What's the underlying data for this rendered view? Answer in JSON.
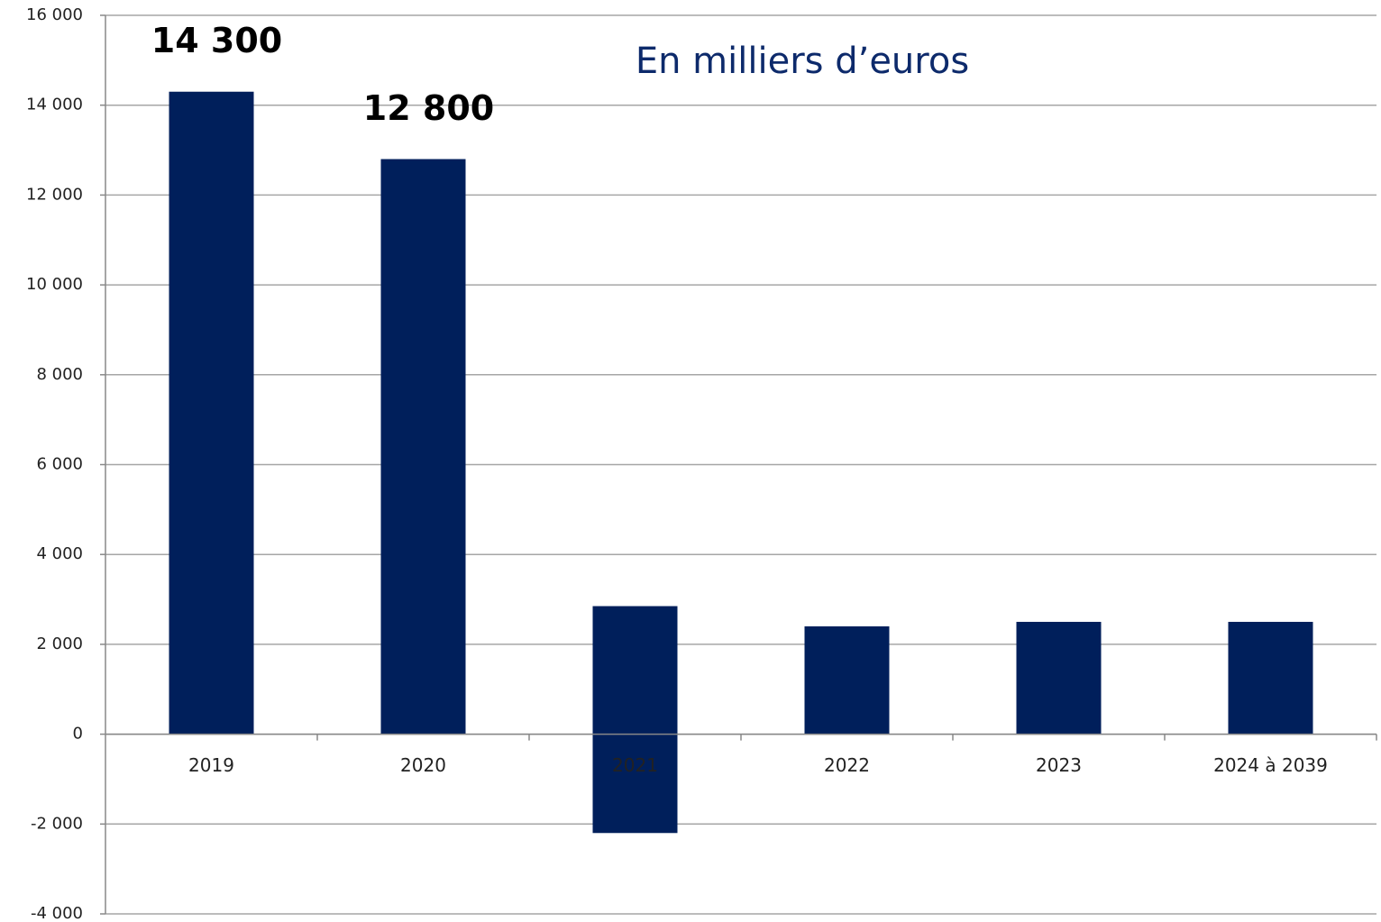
{
  "chart_data": {
    "type": "bar",
    "stacked": true,
    "annotation": "En milliers d’euros",
    "categories": [
      "2019",
      "2020",
      "2021",
      "2022",
      "2023",
      "2024 à 2039"
    ],
    "series": [
      {
        "color": "#001f5b",
        "values": [
          14300,
          12800,
          2850,
          2400,
          2500,
          2500
        ],
        "value_labels": [
          "14 300",
          "12 800",
          null,
          null,
          null,
          null
        ]
      },
      {
        "color": "#001f5b",
        "values": [
          null,
          null,
          -2200,
          null,
          null,
          null
        ]
      }
    ],
    "ylim": [
      -4000,
      16000
    ],
    "yticks": [
      {
        "value": -4000,
        "label": "-4 000"
      },
      {
        "value": -2000,
        "label": "-2 000"
      },
      0,
      {
        "value": 2000,
        "label": "2 000"
      },
      {
        "value": 4000,
        "label": "4 000"
      },
      {
        "value": 6000,
        "label": "6 000"
      },
      {
        "value": 8000,
        "label": "8 000"
      },
      {
        "value": 10000,
        "label": "10 000"
      },
      {
        "value": 12000,
        "label": "12 000"
      },
      {
        "value": 14000,
        "label": "14 000"
      },
      {
        "value": 16000,
        "label": "16 000"
      }
    ],
    "grid": true
  }
}
